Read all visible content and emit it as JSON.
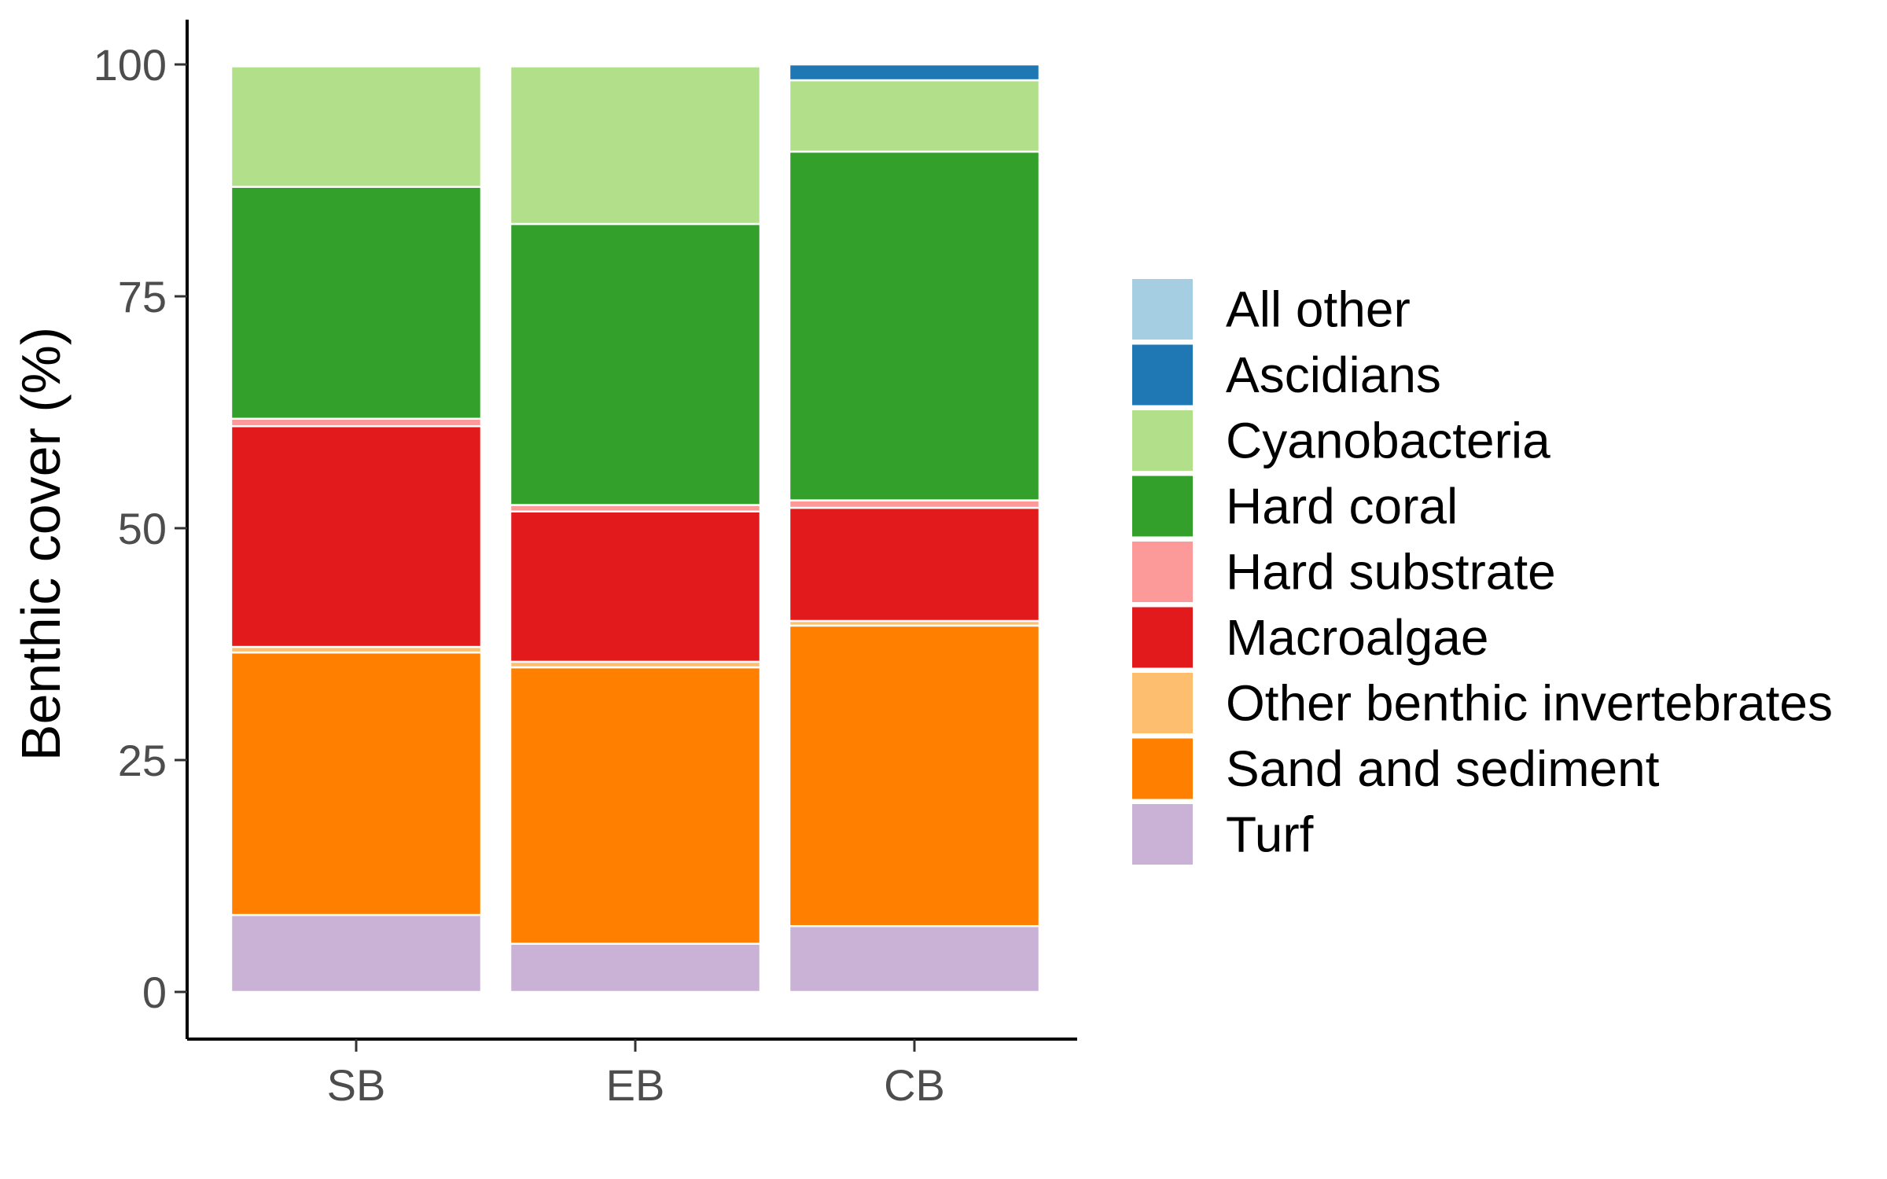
{
  "chart_data": {
    "type": "bar",
    "stacked": true,
    "title": "",
    "xlabel": "",
    "ylabel": "Benthic cover (%)",
    "ylim": [
      0,
      105
    ],
    "yticks": [
      0,
      25,
      50,
      75,
      100
    ],
    "grid": false,
    "legend_position": "right",
    "categories": [
      "SB",
      "EB",
      "CB"
    ],
    "series": [
      {
        "name": "Turf",
        "color": "#CAB2D6",
        "values": [
          8.3,
          5.2,
          7.1
        ]
      },
      {
        "name": "Sand and sediment",
        "color": "#FF7F00",
        "values": [
          28.3,
          29.8,
          32.4
        ]
      },
      {
        "name": "Other benthic invertebrates",
        "color": "#FDBF6F",
        "values": [
          0.6,
          0.6,
          0.5
        ]
      },
      {
        "name": "Macroalgae",
        "color": "#E31A1C",
        "values": [
          23.8,
          16.2,
          12.2
        ]
      },
      {
        "name": "Hard substrate",
        "color": "#FB9A99",
        "values": [
          0.8,
          0.7,
          0.8
        ]
      },
      {
        "name": "Hard coral",
        "color": "#33A02C",
        "values": [
          25.0,
          30.3,
          37.6
        ]
      },
      {
        "name": "Cyanobacteria",
        "color": "#B2DF8A",
        "values": [
          13.0,
          17.0,
          7.7
        ]
      },
      {
        "name": "Ascidians",
        "color": "#1F78B4",
        "values": [
          0.2,
          0.2,
          1.7
        ]
      },
      {
        "name": "All other",
        "color": "#A6CEE3",
        "values": [
          0.0,
          0.0,
          0.0
        ]
      }
    ],
    "legend_order": [
      "All other",
      "Ascidians",
      "Cyanobacteria",
      "Hard coral",
      "Hard substrate",
      "Macroalgae",
      "Other benthic invertebrates",
      "Sand and sediment",
      "Turf"
    ]
  }
}
